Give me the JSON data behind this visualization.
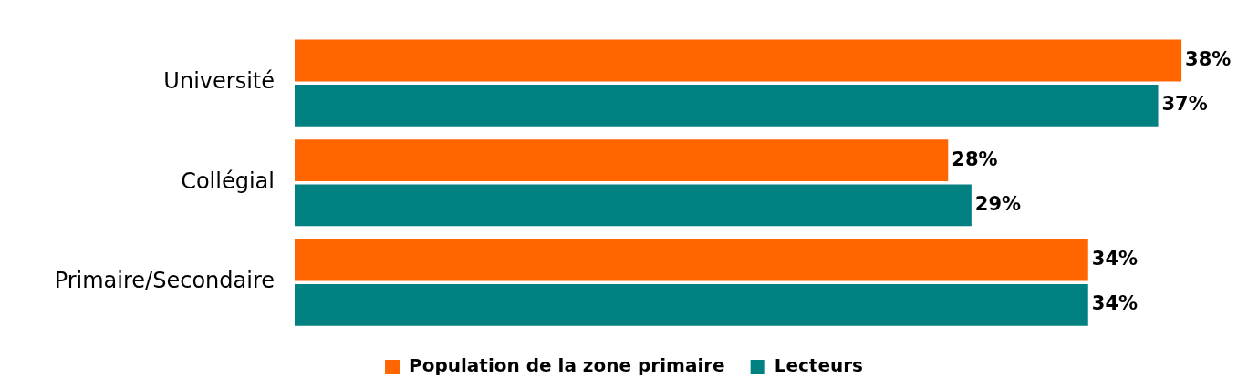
{
  "chart_data": {
    "type": "bar",
    "orientation": "horizontal",
    "tick_labels": "y",
    "categories": [
      "Université",
      "Collégial",
      "Primaire/Secondaire"
    ],
    "series": [
      {
        "name": "Population de la zone primaire",
        "color": "#ff6600",
        "values": [
          38,
          28,
          34
        ],
        "value_labels": [
          "38%",
          "28%",
          "34%"
        ]
      },
      {
        "name": "Lecteurs",
        "color": "#008080",
        "values": [
          37,
          29,
          34
        ],
        "value_labels": [
          "37%",
          "29%",
          "34%"
        ]
      }
    ],
    "legend": "bottom"
  }
}
